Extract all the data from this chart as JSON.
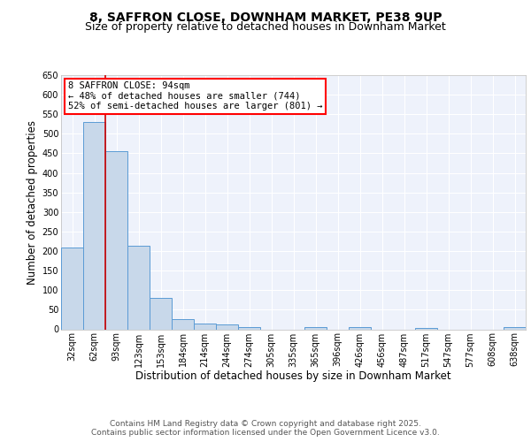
{
  "title": "8, SAFFRON CLOSE, DOWNHAM MARKET, PE38 9UP",
  "subtitle": "Size of property relative to detached houses in Downham Market",
  "xlabel": "Distribution of detached houses by size in Downham Market",
  "ylabel": "Number of detached properties",
  "bins": [
    "32sqm",
    "62sqm",
    "93sqm",
    "123sqm",
    "153sqm",
    "184sqm",
    "214sqm",
    "244sqm",
    "274sqm",
    "305sqm",
    "335sqm",
    "365sqm",
    "396sqm",
    "426sqm",
    "456sqm",
    "487sqm",
    "517sqm",
    "547sqm",
    "577sqm",
    "608sqm",
    "638sqm"
  ],
  "values": [
    210,
    530,
    455,
    213,
    80,
    25,
    15,
    12,
    5,
    0,
    0,
    6,
    0,
    5,
    0,
    0,
    4,
    0,
    0,
    0,
    5
  ],
  "bar_color": "#c8d8ea",
  "bar_edge_color": "#5b9bd5",
  "bar_width": 1.0,
  "red_line_x": 1.5,
  "ylim": [
    0,
    650
  ],
  "yticks": [
    0,
    50,
    100,
    150,
    200,
    250,
    300,
    350,
    400,
    450,
    500,
    550,
    600,
    650
  ],
  "annotation_text": "8 SAFFRON CLOSE: 94sqm\n← 48% of detached houses are smaller (744)\n52% of semi-detached houses are larger (801) →",
  "background_color": "#eef2fb",
  "grid_color": "#ffffff",
  "footer_text": "Contains HM Land Registry data © Crown copyright and database right 2025.\nContains public sector information licensed under the Open Government Licence v3.0.",
  "title_fontsize": 10,
  "subtitle_fontsize": 9,
  "axis_label_fontsize": 8.5,
  "tick_fontsize": 7,
  "footer_fontsize": 6.5,
  "ann_fontsize": 7.5
}
